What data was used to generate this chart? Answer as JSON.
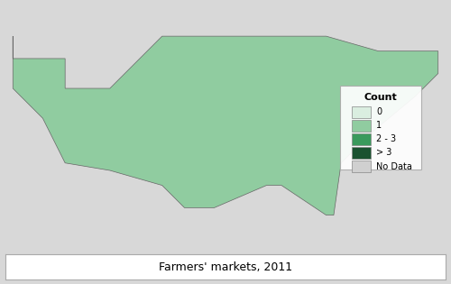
{
  "title": "Farmers' markets, 2011",
  "legend_title": "Count",
  "legend_labels": [
    "0",
    "1",
    "2 - 3",
    "> 3",
    "No Data"
  ],
  "color_0": "#daeee0",
  "color_1": "#90cca0",
  "color_2_3": "#3a9a5c",
  "color_gt3": "#1a5230",
  "color_nodata": "#d0d0d0",
  "ocean_color": "#c5dff0",
  "figure_bg": "#d8d8d8",
  "map_border_color": "#888888",
  "state_border_color": "#666666",
  "county_border_color": "#aaaaaa",
  "legend_border_color": "#aaaaaa",
  "title_fontsize": 9,
  "legend_fontsize": 7,
  "xlim": [
    -125,
    -66
  ],
  "ylim": [
    24,
    50
  ]
}
